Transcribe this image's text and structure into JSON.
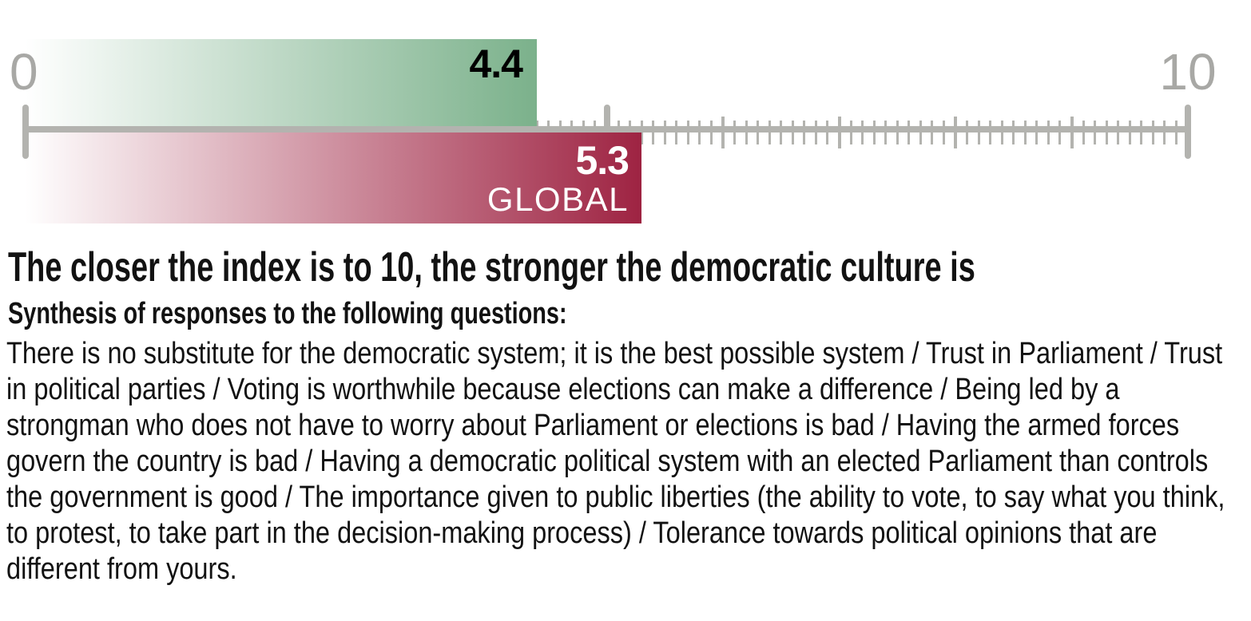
{
  "chart_data": {
    "type": "bar",
    "orientation": "horizontal",
    "axis": {
      "min": 0,
      "max": 10,
      "min_label": "0",
      "max_label": "10",
      "minor_tick_step": 0.1,
      "major_tick_step": 1,
      "emphasized_ticks": [
        0,
        5,
        10
      ],
      "grid": false
    },
    "series": [
      {
        "name": "country-index",
        "value": 4.4,
        "label": "4.4",
        "bar_color_start": "#ffffff",
        "bar_color_end": "#7bb18b",
        "label_color": "#000000"
      },
      {
        "name": "global-index",
        "value": 5.3,
        "label": "5.3",
        "sublabel": "GLOBAL",
        "bar_color_start": "#ffffff",
        "bar_color_end": "#9e2342",
        "label_color": "#ffffff"
      }
    ]
  },
  "caption": {
    "title": "The closer the index is to 10, the stronger the democratic culture is",
    "subtitle": "Synthesis of responses to the following questions:",
    "body": "There is no substitute for the democratic system; it is the best possible system / Trust in Parliament / Trust in political parties / Voting is worthwhile because elections can make a difference / Being led by a strongman who does not have to worry about Parliament or elections is bad / Having the armed forces govern the country is bad / Having a democratic political system with an elected Parliament than controls the government is good / The importance given to public liberties (the ability to vote, to say what you think, to protest, to take part in the decision-making process) / Tolerance towards political opinions that are different from yours."
  },
  "colors": {
    "ruler": "#b3b3af",
    "axis_label": "#a8a8a5",
    "green_end": "#7bb18b",
    "red_end": "#9e2342",
    "text": "#121212"
  }
}
